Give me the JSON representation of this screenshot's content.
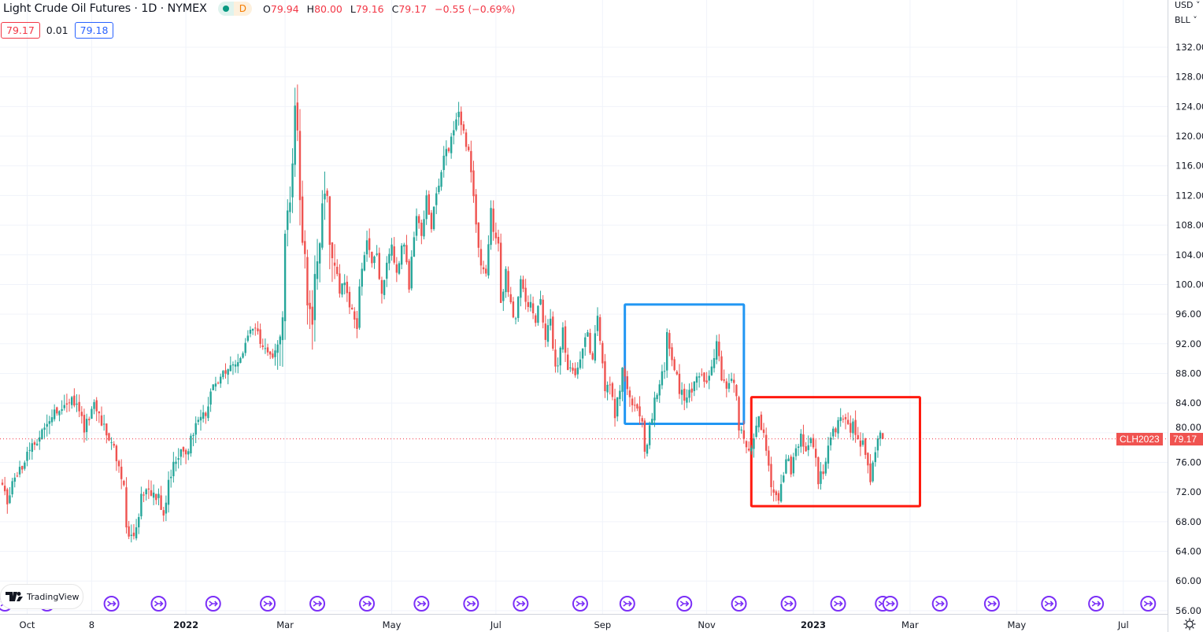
{
  "header": {
    "title": "Light Crude Oil Futures · 1D · NYMEX",
    "interval_badge": "D",
    "ohlc": {
      "o_label": "O",
      "o": "79.94",
      "h_label": "H",
      "h": "80.00",
      "l_label": "L",
      "l": "79.16",
      "c_label": "C",
      "c": "79.17",
      "change": "−0.55 (−0.69%)"
    },
    "bid": "79.17",
    "spread": "0.01",
    "ask": "79.18"
  },
  "axis_units": {
    "currency": "USD ˅",
    "unit": "BLL ˅"
  },
  "price_tag": {
    "symbol": "CLH2023",
    "price": "79.17"
  },
  "logo_text": "TradingView",
  "colors": {
    "up": "#26a69a",
    "down": "#ef5350",
    "blue_box": "#2196f3",
    "red_box": "#ff1a0f",
    "event": "#7b2ff7"
  },
  "chart_data": {
    "type": "candlestick",
    "title": "Light Crude Oil Futures · 1D · NYMEX",
    "ylim": [
      56,
      132
    ],
    "y_ticks": [
      "132.00",
      "128.00",
      "124.00",
      "120.00",
      "116.00",
      "112.00",
      "108.00",
      "104.00",
      "100.00",
      "96.00",
      "92.00",
      "88.00",
      "84.00",
      "80.00",
      "76.00",
      "72.00",
      "68.00",
      "64.00",
      "60.00",
      "56.00"
    ],
    "x_ticks": [
      {
        "label": "Oct",
        "day": 10
      },
      {
        "label": "8",
        "day": 36
      },
      {
        "label": "2022",
        "day": 74,
        "bold": true
      },
      {
        "label": "Mar",
        "day": 114
      },
      {
        "label": "May",
        "day": 157
      },
      {
        "label": "Jul",
        "day": 199
      },
      {
        "label": "Sep",
        "day": 242
      },
      {
        "label": "Nov",
        "day": 284
      },
      {
        "label": "2023",
        "day": 327,
        "bold": true
      },
      {
        "label": "Mar",
        "day": 366
      },
      {
        "label": "May",
        "day": 409
      },
      {
        "label": "Jul",
        "day": 452
      }
    ],
    "close_waypoints": {
      "day": [
        0,
        2,
        5,
        12,
        17,
        21,
        27,
        31,
        33,
        37,
        39,
        43,
        47,
        49,
        50,
        51,
        54,
        56,
        59,
        63,
        65,
        67,
        70,
        75,
        78,
        82,
        85,
        90,
        94,
        99,
        102,
        105,
        109,
        111,
        113,
        114,
        116,
        117,
        118,
        119,
        120,
        122,
        123,
        125,
        127,
        129,
        130,
        132,
        134,
        136,
        138,
        141,
        143,
        144,
        147,
        149,
        151,
        153,
        155,
        157,
        159,
        162,
        164,
        165,
        167,
        169,
        171,
        173,
        176,
        178,
        180,
        182,
        184,
        186,
        188,
        190,
        191,
        193,
        195,
        197,
        198,
        200,
        201,
        203,
        205,
        207,
        209,
        211,
        213,
        215,
        217,
        219,
        221,
        223,
        224,
        226,
        228,
        230,
        232,
        234,
        236,
        238,
        240,
        241,
        243,
        245,
        247,
        249,
        250,
        252,
        254,
        256,
        258,
        259,
        261,
        263,
        265,
        267,
        268,
        270,
        272,
        273,
        275,
        277,
        278,
        280,
        282,
        284,
        286,
        288,
        290,
        292,
        294,
        296,
        297,
        299,
        301,
        303,
        305,
        307,
        309,
        311,
        313,
        315,
        317,
        318,
        320,
        322,
        324,
        326,
        328,
        329,
        331,
        333,
        335,
        337,
        339,
        341,
        343,
        345,
        347,
        348,
        350,
        352,
        354,
        355
      ],
      "close": [
        72.5,
        70.5,
        74,
        78,
        81,
        83,
        84.5,
        83,
        80.5,
        84.5,
        82,
        79.5,
        76,
        73,
        67,
        66,
        67,
        71.5,
        72,
        71.5,
        69,
        73,
        76.5,
        78,
        80.5,
        83,
        86,
        88,
        89,
        92.5,
        94.5,
        91,
        90,
        93,
        96,
        108,
        110,
        116,
        123,
        121,
        110,
        103,
        99,
        95,
        104,
        110,
        113,
        107,
        104,
        98,
        101,
        96,
        94.5,
        99,
        106,
        103,
        104,
        99,
        103,
        105,
        102,
        106,
        100,
        104,
        110,
        107,
        112,
        108,
        114,
        117,
        118.5,
        120.5,
        122.5,
        121,
        117.5,
        112,
        108,
        103,
        102,
        110,
        107,
        105,
        97,
        102,
        97,
        95,
        100.5,
        97,
        97,
        95.5,
        98,
        93,
        95,
        89,
        89.5,
        93.5,
        89,
        88,
        89,
        92,
        93.5,
        89.5,
        96,
        93,
        85,
        86.5,
        82,
        86,
        88,
        86,
        84,
        83.5,
        81,
        77,
        81,
        84,
        86.5,
        89,
        93,
        89,
        88,
        86,
        84.5,
        85,
        86,
        88,
        87.5,
        86,
        89.5,
        92,
        87.5,
        86,
        87,
        85,
        81,
        79,
        77,
        79.5,
        82,
        80,
        75,
        71.5,
        71,
        75,
        76.5,
        74.5,
        77.5,
        79.5,
        78,
        80,
        77,
        73.5,
        75,
        78,
        80,
        81.5,
        82,
        80.5,
        81,
        78.5,
        79,
        76.5,
        73.5,
        77.5,
        79.5,
        79.17
      ]
    },
    "last_candle": {
      "open": 79.94,
      "high": 80.0,
      "low": 79.16,
      "close": 79.17
    },
    "last_price_line": 79.17,
    "annotations": [
      {
        "type": "rectangle",
        "color": "blue",
        "day_from": 251,
        "day_to": 299,
        "price_top": 97.3,
        "price_bottom": 81.2
      },
      {
        "type": "rectangle",
        "color": "red",
        "day_from": 302,
        "day_to": 370,
        "price_top": 84.8,
        "price_bottom": 70.1
      }
    ],
    "event_markers_days": [
      1,
      18,
      44,
      63,
      85,
      107,
      127,
      147,
      169,
      189,
      209,
      233,
      252,
      275,
      297,
      317,
      337,
      355,
      358,
      378,
      399,
      422,
      441,
      462
    ]
  }
}
